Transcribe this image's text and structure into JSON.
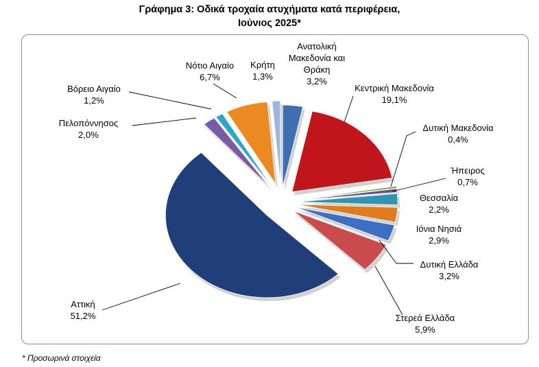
{
  "chart_data": {
    "type": "pie",
    "title": "Γράφημα 3: Οδικά τροχαία ατυχήματα κατά περιφέρεια,",
    "subtitle": "Ιούνιος 2025*",
    "unit": "%",
    "slices": [
      {
        "name": [
          "Ανατολική",
          "Μακεδονία και",
          "Θράκη"
        ],
        "value": 3.2,
        "label": "3,2%",
        "color": "#3f6fb0"
      },
      {
        "name": [
          "Κεντρική Μακεδονία"
        ],
        "value": 19.1,
        "label": "19,1%",
        "color": "#c0151a"
      },
      {
        "name": [
          "Δυτική Μακεδονία"
        ],
        "value": 0.4,
        "label": "0,4%",
        "color": "#7aa32e"
      },
      {
        "name": [
          "Ήπειρος"
        ],
        "value": 0.7,
        "label": "0,7%",
        "color": "#6a4e96"
      },
      {
        "name": [
          "Θεσσαλία"
        ],
        "value": 2.2,
        "label": "2,2%",
        "color": "#2f95b0"
      },
      {
        "name": [
          "Ιόνια Νησιά"
        ],
        "value": 2.9,
        "label": "2,9%",
        "color": "#e07c1c"
      },
      {
        "name": [
          "Δυτική Ελλάδα"
        ],
        "value": 3.2,
        "label": "3,2%",
        "color": "#3d70c4"
      },
      {
        "name": [
          "Στερεά Ελλάδα"
        ],
        "value": 5.9,
        "label": "5,9%",
        "color": "#c94b4b"
      },
      {
        "name": [
          "Αττική"
        ],
        "value": 51.2,
        "label": "51,2%",
        "color": "#1f3e7a"
      },
      {
        "name": [
          "Πελοπόννησος"
        ],
        "value": 2.0,
        "label": "2,0%",
        "color": "#7b5ba8"
      },
      {
        "name": [
          "Βόρειο Αιγαίο"
        ],
        "value": 1.2,
        "label": "1,2%",
        "color": "#2aa7c9"
      },
      {
        "name": [
          "Νότιο Αιγαίο"
        ],
        "value": 6.7,
        "label": "6,7%",
        "color": "#ec8a22"
      },
      {
        "name": [
          "Κρήτη"
        ],
        "value": 1.3,
        "label": "1,3%",
        "color": "#9fb6dc"
      }
    ]
  },
  "footnote": "* Προσωρινά στοιχεία"
}
